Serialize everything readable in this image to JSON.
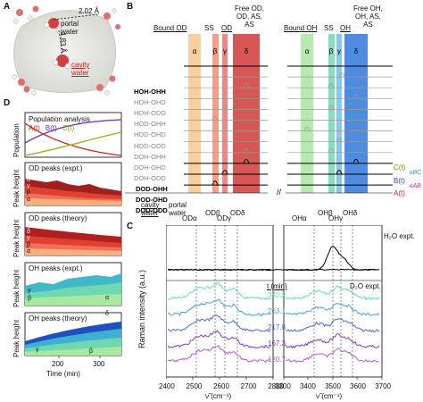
{
  "panel_letters": {
    "a": "A",
    "b": "B",
    "c": "C",
    "d": "D"
  },
  "panelA": {
    "distance1": "2.02 Å",
    "distance2": "1.83 Å",
    "label_portal": "portal\nwater",
    "label_cavity": "cavity\nwater"
  },
  "panelB": {
    "header_left_bound": "Bound OD",
    "header_left_ss": "SS",
    "header_left_od": "OD",
    "header_left_free": "Free OD,\nOD, AS,\nAS",
    "header_right_bound": "Bound OH",
    "header_right_ss": "SS",
    "header_right_oh": "OH",
    "header_right_free": "Free OH,\nOH, AS,\nAS",
    "band_labels_left": [
      "α",
      "β",
      "γ",
      "δ"
    ],
    "band_labels_right": [
      "α",
      "β",
      "γ",
      "δ"
    ],
    "rows": [
      "HOH-OHH",
      "HOH-OHD",
      "HOH-ODD",
      "HOD-OHH",
      "HOD-OHD",
      "HOD-ODD",
      "DOH-OHH",
      "DOH-OHD",
      "DOH-ODD",
      "DOD-OHH",
      "DOD-OHD",
      "DOD-ODD"
    ],
    "legend": [
      "C(t)",
      "B(t)",
      "A(t)"
    ],
    "k_labels": [
      "κBC",
      "κAB"
    ],
    "bottom_left": "cavity\nwater",
    "bottom_right": "portal\nwater",
    "x_ticks_left": [
      "ODα",
      "ODβ",
      "ODγ",
      "ODδ"
    ],
    "x_ticks_right": [
      "OHα",
      "OHβ",
      "OHγ",
      "OHδ"
    ]
  },
  "panelC": {
    "h2o_label": "H₂O expt.",
    "d2o_label": "D₂O expt.",
    "time_header": "t (min)",
    "ylabel": "Raman intensity (a.u.)",
    "xlabel_left": "ν̃ (cm⁻¹)",
    "xlabel_right": "ν̃ (cm⁻¹)",
    "times": [
      "340.2",
      "263.1",
      "217.8",
      "167.3",
      "120.7"
    ],
    "trace_colors": [
      "#5fe0b0",
      "#4a9fd8",
      "#4a6fd0",
      "#7a3fc8",
      "#b060e0"
    ],
    "x_ticks_left": [
      "2400",
      "2500",
      "2600",
      "2700",
      "2800"
    ],
    "x_ticks_right": [
      "3300",
      "3400",
      "3500",
      "3600",
      "3700"
    ]
  },
  "panelD": {
    "pop_title": "Population analysis",
    "pop_ylabel": "Population",
    "legend": [
      "A(t)",
      "B(t)",
      "C(t)"
    ],
    "od_expt_title": "OD peaks (expt.)",
    "od_theory_title": "OD peaks (theory)",
    "oh_expt_title": "OH peaks (expt.)",
    "oh_theory_title": "OH peaks (theory)",
    "peak_ylabel": "Peak height",
    "x_ticks": [
      "200",
      "300"
    ],
    "xlabel": "Time (min)",
    "greek": {
      "a": "α",
      "b": "β",
      "g": "γ",
      "d": "δ"
    }
  }
}
